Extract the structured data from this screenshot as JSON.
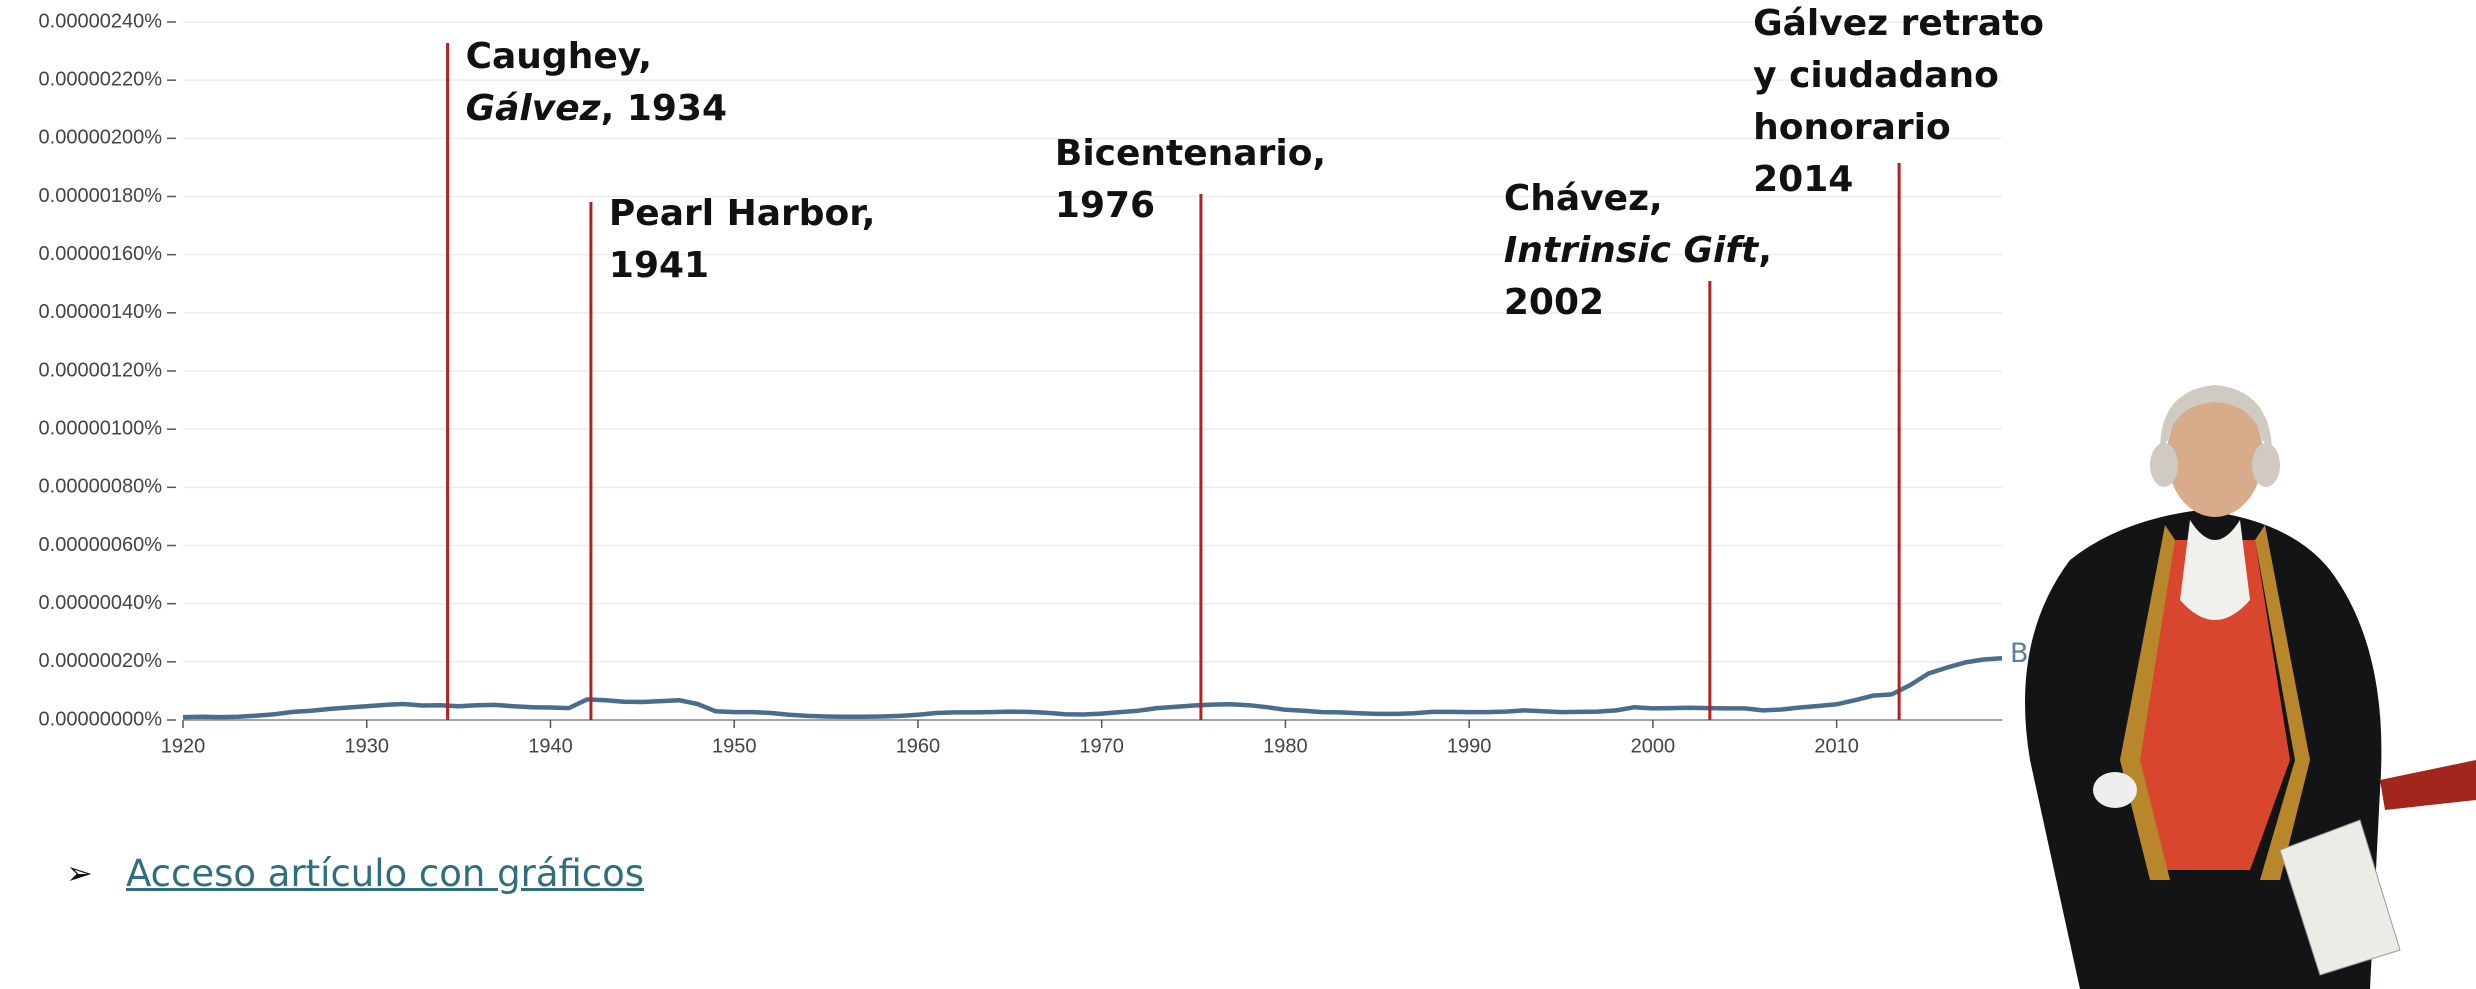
{
  "chart_data": {
    "type": "line",
    "x": [
      1920,
      1921,
      1922,
      1923,
      1924,
      1925,
      1926,
      1927,
      1928,
      1929,
      1930,
      1931,
      1932,
      1933,
      1934,
      1935,
      1936,
      1937,
      1938,
      1939,
      1940,
      1941,
      1942,
      1943,
      1944,
      1945,
      1946,
      1947,
      1948,
      1949,
      1950,
      1951,
      1952,
      1953,
      1954,
      1955,
      1956,
      1957,
      1958,
      1959,
      1960,
      1961,
      1962,
      1963,
      1964,
      1965,
      1966,
      1967,
      1968,
      1969,
      1970,
      1971,
      1972,
      1973,
      1974,
      1975,
      1976,
      1977,
      1978,
      1979,
      1980,
      1981,
      1982,
      1983,
      1984,
      1985,
      1986,
      1987,
      1988,
      1989,
      1990,
      1991,
      1992,
      1993,
      1994,
      1995,
      1996,
      1997,
      1998,
      1999,
      2000,
      2001,
      2002,
      2003,
      2004,
      2005,
      2006,
      2007,
      2008,
      2009,
      2010,
      2011,
      2012,
      2013,
      2014,
      2015,
      2016,
      2017,
      2018,
      2019
    ],
    "series": [
      {
        "name": "Bernardo de Gálvez",
        "color": "#4a6d8f",
        "values": [
          1e-08,
          1.1e-08,
          1e-08,
          1.1e-08,
          1.5e-08,
          2e-08,
          2.8e-08,
          3.2e-08,
          3.8e-08,
          4.3e-08,
          4.7e-08,
          5.2e-08,
          5.5e-08,
          5e-08,
          5.1e-08,
          4.7e-08,
          5.1e-08,
          5.2e-08,
          4.7e-08,
          4.4e-08,
          4.3e-08,
          4.1e-08,
          7.1e-08,
          6.8e-08,
          6.3e-08,
          6.2e-08,
          6.5e-08,
          6.8e-08,
          5.5e-08,
          3e-08,
          2.7e-08,
          2.7e-08,
          2.4e-08,
          1.8e-08,
          1.4e-08,
          1.2e-08,
          1.1e-08,
          1.1e-08,
          1.2e-08,
          1.4e-08,
          1.8e-08,
          2.4e-08,
          2.6e-08,
          2.6e-08,
          2.7e-08,
          2.9e-08,
          2.8e-08,
          2.5e-08,
          2e-08,
          1.9e-08,
          2.2e-08,
          2.7e-08,
          3.2e-08,
          4.1e-08,
          4.5e-08,
          5e-08,
          5.3e-08,
          5.4e-08,
          5.1e-08,
          4.4e-08,
          3.5e-08,
          3.2e-08,
          2.7e-08,
          2.6e-08,
          2.3e-08,
          2.1e-08,
          2.1e-08,
          2.3e-08,
          2.8e-08,
          2.8e-08,
          2.7e-08,
          2.7e-08,
          2.9e-08,
          3.3e-08,
          3e-08,
          2.7e-08,
          2.8e-08,
          2.9e-08,
          3.3e-08,
          4.4e-08,
          4e-08,
          4.1e-08,
          4.2e-08,
          4.1e-08,
          4e-08,
          4e-08,
          3.3e-08,
          3.6e-08,
          4.3e-08,
          4.8e-08,
          5.4e-08,
          6.8e-08,
          8.4e-08,
          8.8e-08,
          1.2e-07,
          1.6e-07,
          1.8e-07,
          1.98e-07,
          2.08e-07,
          2.12e-07
        ]
      }
    ],
    "xlim": [
      1920,
      2019
    ],
    "xticks": [
      1920,
      1930,
      1940,
      1950,
      1960,
      1970,
      1980,
      1990,
      2000,
      2010
    ],
    "ylim": [
      0,
      2.4e-06
    ],
    "yticks": [
      {
        "value": 0,
        "label": "0.00000000%"
      },
      {
        "value": 2e-07,
        "label": "0.00000020%"
      },
      {
        "value": 4e-07,
        "label": "0.00000040%"
      },
      {
        "value": 6e-07,
        "label": "0.00000060%"
      },
      {
        "value": 8e-07,
        "label": "0.00000080%"
      },
      {
        "value": 1e-06,
        "label": "0.00000100%"
      },
      {
        "value": 1.2e-06,
        "label": "0.00000120%"
      },
      {
        "value": 1.4e-06,
        "label": "0.00000140%"
      },
      {
        "value": 1.6e-06,
        "label": "0.00000160%"
      },
      {
        "value": 1.8e-06,
        "label": "0.00000180%"
      },
      {
        "value": 2e-06,
        "label": "0.00000200%"
      },
      {
        "value": 2.2e-06,
        "label": "0.00000220%"
      },
      {
        "value": 2.4e-06,
        "label": "0.00000240%"
      }
    ],
    "grid": true,
    "annotation_color": "#b22222",
    "annotations": [
      {
        "x": 1934.4,
        "lines": [
          [
            "Caughey,"
          ],
          [
            {
              "text": "Gálvez",
              "italic": true
            },
            ", 1934"
          ]
        ]
      },
      {
        "x": 1942.2,
        "lines": [
          [
            "Pearl Harbor,"
          ],
          [
            "1941"
          ]
        ]
      },
      {
        "x": 1975.4,
        "lines": [
          [
            "Bicentenario,"
          ],
          [
            "1976"
          ]
        ]
      },
      {
        "x": 2003.1,
        "lines": [
          [
            "Chávez,"
          ],
          [
            {
              "text": "Intrinsic Gift",
              "italic": true
            },
            ","
          ],
          [
            "2002"
          ]
        ]
      },
      {
        "x": 2013.4,
        "lines": [
          [
            "Gálvez retrato"
          ],
          [
            "y ciudadano"
          ],
          [
            "honorario"
          ],
          [
            "2014"
          ]
        ]
      }
    ]
  },
  "link": {
    "text": "Acceso artículo con gráficos"
  }
}
